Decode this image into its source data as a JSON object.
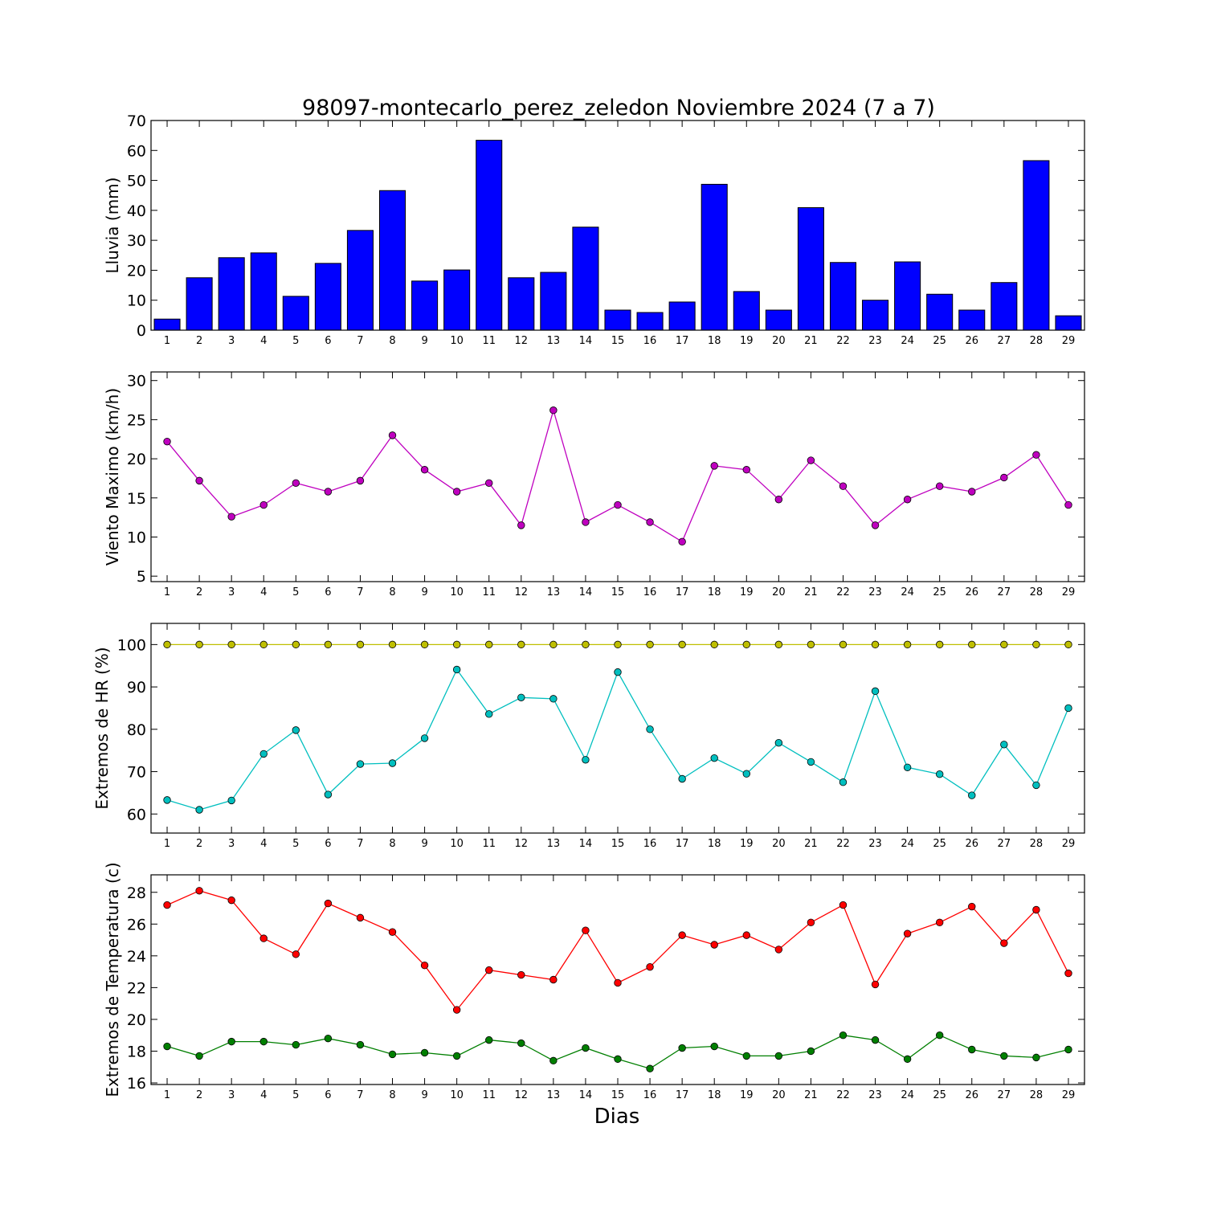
{
  "title": "98097-montecarlo_perez_zeledon Noviembre 2024  (7 a 7)",
  "xlabel": "Dias",
  "chart_data": [
    {
      "type": "bar",
      "ylabel": "Lluvia (mm)",
      "ylim": [
        0,
        70
      ],
      "yticks": [
        0,
        10,
        20,
        30,
        40,
        50,
        60,
        70
      ],
      "x": [
        1,
        2,
        3,
        4,
        5,
        6,
        7,
        8,
        9,
        10,
        11,
        12,
        13,
        14,
        15,
        16,
        17,
        18,
        19,
        20,
        21,
        22,
        23,
        24,
        25,
        26,
        27,
        28,
        29
      ],
      "series": [
        {
          "color": "#0000ff",
          "values": [
            3.7,
            17.5,
            24.2,
            25.8,
            11.3,
            22.3,
            33.3,
            46.6,
            16.4,
            20.1,
            63.4,
            17.5,
            19.3,
            34.4,
            6.7,
            5.9,
            9.4,
            48.7,
            12.9,
            6.7,
            40.9,
            22.6,
            10.0,
            22.8,
            12.0,
            6.7,
            15.9,
            56.6,
            4.8
          ]
        }
      ]
    },
    {
      "type": "line",
      "ylabel": "Viento Maximo (km/h)",
      "ylim": [
        4.3,
        31.1
      ],
      "yticks": [
        5,
        10,
        15,
        20,
        25,
        30
      ],
      "x": [
        1,
        2,
        3,
        4,
        5,
        6,
        7,
        8,
        9,
        10,
        11,
        12,
        13,
        14,
        15,
        16,
        17,
        18,
        19,
        20,
        21,
        22,
        23,
        24,
        25,
        26,
        27,
        28,
        29
      ],
      "series": [
        {
          "color": "#bf00bf",
          "values": [
            22.2,
            17.2,
            12.6,
            14.1,
            16.9,
            15.8,
            17.2,
            23.0,
            18.6,
            15.8,
            16.9,
            11.5,
            26.2,
            11.9,
            14.1,
            11.9,
            9.4,
            19.1,
            18.6,
            14.8,
            19.8,
            16.5,
            11.5,
            14.8,
            16.5,
            15.8,
            17.6,
            20.5,
            14.1
          ]
        }
      ]
    },
    {
      "type": "line",
      "ylabel": "Extremos de HR (%)",
      "ylim": [
        55.5,
        105
      ],
      "yticks": [
        60,
        70,
        80,
        90,
        100
      ],
      "x": [
        1,
        2,
        3,
        4,
        5,
        6,
        7,
        8,
        9,
        10,
        11,
        12,
        13,
        14,
        15,
        16,
        17,
        18,
        19,
        20,
        21,
        22,
        23,
        24,
        25,
        26,
        27,
        28,
        29
      ],
      "series": [
        {
          "color": "#bfbf00",
          "values": [
            100,
            100,
            100,
            100,
            100,
            100,
            100,
            100,
            100,
            100,
            100,
            100,
            100,
            100,
            100,
            100,
            100,
            100,
            100,
            100,
            100,
            100,
            100,
            100,
            100,
            100,
            100,
            100,
            100
          ]
        },
        {
          "color": "#00bfbf",
          "values": [
            63.3,
            61.0,
            63.2,
            74.2,
            79.8,
            64.6,
            71.8,
            72.0,
            77.9,
            94.1,
            83.6,
            87.5,
            87.2,
            72.8,
            93.5,
            80.0,
            68.3,
            73.2,
            69.5,
            76.8,
            72.3,
            67.5,
            89.0,
            71.0,
            69.4,
            64.4,
            76.4,
            66.8,
            85.0
          ]
        }
      ]
    },
    {
      "type": "line",
      "ylabel": "Extremos de Temperatura (c)",
      "ylim": [
        15.9,
        29.1
      ],
      "yticks": [
        16,
        18,
        20,
        22,
        24,
        26,
        28
      ],
      "x": [
        1,
        2,
        3,
        4,
        5,
        6,
        7,
        8,
        9,
        10,
        11,
        12,
        13,
        14,
        15,
        16,
        17,
        18,
        19,
        20,
        21,
        22,
        23,
        24,
        25,
        26,
        27,
        28,
        29
      ],
      "series": [
        {
          "color": "#ff0000",
          "values": [
            27.2,
            28.1,
            27.5,
            25.1,
            24.1,
            27.3,
            26.4,
            25.5,
            23.4,
            20.6,
            23.1,
            22.8,
            22.5,
            25.6,
            22.3,
            23.3,
            25.3,
            24.7,
            25.3,
            24.4,
            26.1,
            27.2,
            22.2,
            25.4,
            26.1,
            27.1,
            24.8,
            26.9,
            22.9
          ]
        },
        {
          "color": "#007f00",
          "values": [
            18.3,
            17.7,
            18.6,
            18.6,
            18.4,
            18.8,
            18.4,
            17.8,
            17.9,
            17.7,
            18.7,
            18.5,
            17.4,
            18.2,
            17.5,
            16.9,
            18.2,
            18.3,
            17.7,
            17.7,
            18.0,
            19.0,
            18.7,
            17.5,
            19.0,
            18.1,
            17.7,
            17.6,
            18.1
          ]
        }
      ]
    }
  ]
}
